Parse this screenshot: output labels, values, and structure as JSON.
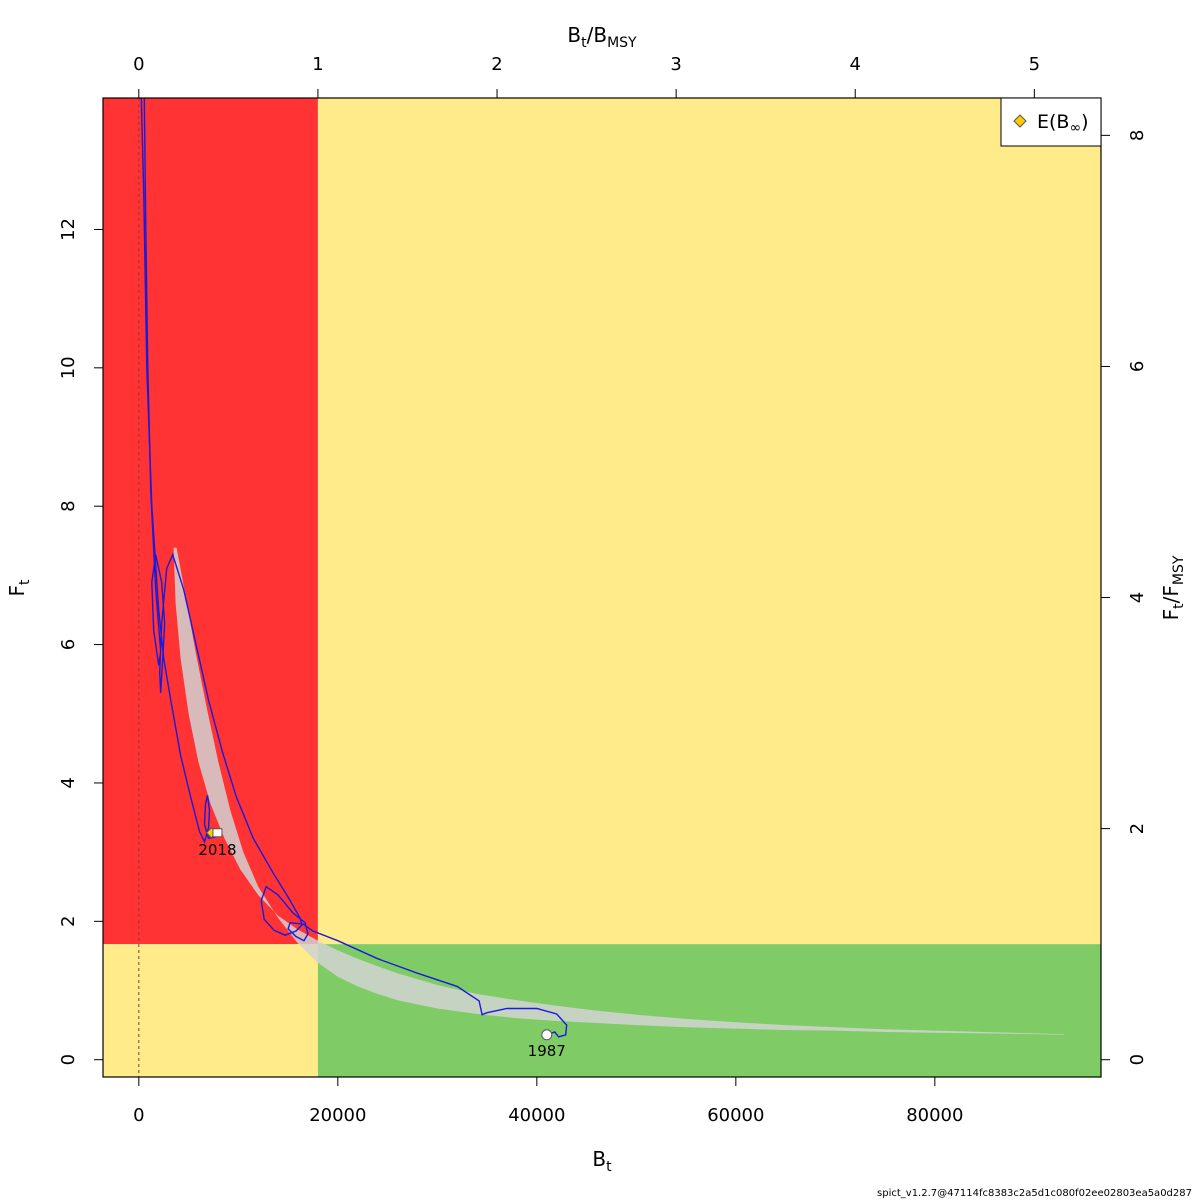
{
  "chart_data": {
    "type": "line",
    "xlabel": "B",
    "xlabel_sub": "t",
    "ylabel": "F",
    "ylabel_sub": "t",
    "top_label": "B",
    "top_label_sub1": "t",
    "top_label_sep": "/",
    "top_label_b": "B",
    "top_label_sub2": "MSY",
    "right_label": "F",
    "right_label_sub1": "t",
    "right_label_sep": "/",
    "right_label_b": "F",
    "right_label_sub2": "MSY",
    "xlim": [
      -3600,
      96700
    ],
    "ylim": [
      -0.25,
      13.9
    ],
    "x_ticks": [
      0,
      20000,
      40000,
      60000,
      80000
    ],
    "x_tick_labels": [
      "0",
      "20000",
      "40000",
      "60000",
      "80000"
    ],
    "y_ticks": [
      0,
      2,
      4,
      6,
      8,
      10,
      12
    ],
    "y_tick_labels": [
      "0",
      "2",
      "4",
      "6",
      "8",
      "10",
      "12"
    ],
    "bmsy": 18000,
    "fmsy": 1.67,
    "top_ticks": [
      0,
      1,
      2,
      3,
      4,
      5
    ],
    "top_tick_labels": [
      "0",
      "1",
      "2",
      "3",
      "4",
      "5"
    ],
    "right_ticks": [
      0,
      2,
      4,
      6,
      8
    ],
    "right_tick_labels": [
      "0",
      "2",
      "4",
      "6",
      "8"
    ],
    "zones": {
      "red": "#ff3333",
      "yellow": "#ffeb8a",
      "green": "#7fcc66"
    },
    "colors": {
      "trajectory": "#1a1ad9",
      "band": "#d2d2d2",
      "ref_line": "#8b3a3a",
      "diamond": "#ffcc00"
    },
    "band_upper": [
      [
        3500,
        7.4
      ],
      [
        3700,
        6.6
      ],
      [
        4200,
        5.8
      ],
      [
        5000,
        5.0
      ],
      [
        6000,
        4.3
      ],
      [
        7200,
        3.7
      ],
      [
        8600,
        3.2
      ],
      [
        10200,
        2.75
      ],
      [
        12000,
        2.38
      ],
      [
        14000,
        2.08
      ],
      [
        16000,
        1.88
      ],
      [
        18000,
        1.72
      ],
      [
        20000,
        1.58
      ],
      [
        22000,
        1.46
      ],
      [
        24000,
        1.35
      ],
      [
        26000,
        1.25
      ],
      [
        30000,
        1.08
      ],
      [
        34000,
        0.95
      ],
      [
        38000,
        0.86
      ],
      [
        42000,
        0.78
      ],
      [
        46000,
        0.71
      ],
      [
        50000,
        0.65
      ],
      [
        55000,
        0.59
      ],
      [
        60000,
        0.54
      ],
      [
        65000,
        0.5
      ],
      [
        70000,
        0.47
      ],
      [
        75000,
        0.44
      ],
      [
        80000,
        0.42
      ],
      [
        85000,
        0.4
      ],
      [
        90000,
        0.38
      ],
      [
        93000,
        0.37
      ]
    ],
    "band_lower": [
      [
        93000,
        0.36
      ],
      [
        90000,
        0.37
      ],
      [
        85000,
        0.38
      ],
      [
        80000,
        0.39
      ],
      [
        75000,
        0.4
      ],
      [
        70000,
        0.42
      ],
      [
        65000,
        0.43
      ],
      [
        60000,
        0.45
      ],
      [
        55000,
        0.47
      ],
      [
        50000,
        0.5
      ],
      [
        46000,
        0.53
      ],
      [
        42000,
        0.56
      ],
      [
        38000,
        0.6
      ],
      [
        34000,
        0.66
      ],
      [
        30000,
        0.74
      ],
      [
        26000,
        0.86
      ],
      [
        24000,
        0.95
      ],
      [
        22000,
        1.06
      ],
      [
        20000,
        1.2
      ],
      [
        18000,
        1.4
      ],
      [
        16000,
        1.68
      ],
      [
        14000,
        2.05
      ],
      [
        12000,
        2.5
      ],
      [
        10500,
        3.0
      ],
      [
        9200,
        3.6
      ],
      [
        8000,
        4.3
      ],
      [
        6800,
        5.1
      ],
      [
        5700,
        5.9
      ],
      [
        4700,
        6.7
      ],
      [
        3800,
        7.4
      ],
      [
        3500,
        7.4
      ]
    ],
    "trajectory": [
      [
        41000,
        0.36
      ],
      [
        41800,
        0.4
      ],
      [
        42200,
        0.33
      ],
      [
        42900,
        0.36
      ],
      [
        43000,
        0.5
      ],
      [
        42000,
        0.66
      ],
      [
        40000,
        0.74
      ],
      [
        37000,
        0.74
      ],
      [
        35000,
        0.68
      ],
      [
        34500,
        0.65
      ],
      [
        34200,
        0.85
      ],
      [
        32000,
        1.06
      ],
      [
        28000,
        1.25
      ],
      [
        24000,
        1.46
      ],
      [
        20000,
        1.72
      ],
      [
        17500,
        1.86
      ],
      [
        16500,
        1.96
      ],
      [
        15200,
        1.98
      ],
      [
        15000,
        1.89
      ],
      [
        15800,
        1.78
      ],
      [
        16600,
        1.72
      ],
      [
        17000,
        1.82
      ],
      [
        16700,
        1.98
      ],
      [
        15500,
        2.12
      ],
      [
        14000,
        2.38
      ],
      [
        12800,
        2.5
      ],
      [
        12300,
        2.3
      ],
      [
        12600,
        2.03
      ],
      [
        13600,
        1.87
      ],
      [
        14700,
        1.8
      ],
      [
        15800,
        1.86
      ],
      [
        16400,
        1.95
      ],
      [
        16200,
        2.05
      ],
      [
        15000,
        2.35
      ],
      [
        13500,
        2.7
      ],
      [
        11500,
        3.2
      ],
      [
        9800,
        3.8
      ],
      [
        8400,
        4.45
      ],
      [
        7000,
        5.2
      ],
      [
        5600,
        6.1
      ],
      [
        4500,
        6.8
      ],
      [
        3400,
        7.3
      ],
      [
        2800,
        7.1
      ],
      [
        2300,
        6.3
      ],
      [
        2100,
        5.6
      ],
      [
        2200,
        5.3
      ],
      [
        2400,
        5.8
      ],
      [
        2600,
        6.3
      ],
      [
        2300,
        6.9
      ],
      [
        1700,
        7.3
      ],
      [
        1300,
        6.9
      ],
      [
        1500,
        6.2
      ],
      [
        2000,
        5.7
      ],
      [
        2200,
        5.9
      ],
      [
        1700,
        6.8
      ],
      [
        1200,
        8.2
      ],
      [
        900,
        10.0
      ],
      [
        700,
        12.0
      ],
      [
        550,
        13.9
      ]
    ],
    "trajectory_tail": [
      [
        250,
        13.9
      ],
      [
        500,
        12.5
      ],
      [
        800,
        10.0
      ],
      [
        1300,
        8.0
      ],
      [
        2000,
        6.5
      ],
      [
        2500,
        5.8
      ],
      [
        3200,
        5.2
      ],
      [
        4200,
        4.4
      ],
      [
        5200,
        3.8
      ],
      [
        6100,
        3.3
      ],
      [
        6600,
        3.15
      ],
      [
        7000,
        3.35
      ],
      [
        7100,
        3.6
      ],
      [
        6900,
        3.82
      ],
      [
        6700,
        3.7
      ],
      [
        6600,
        3.4
      ],
      [
        7000,
        3.2
      ],
      [
        7700,
        3.22
      ],
      [
        8000,
        3.28
      ]
    ],
    "start_point": {
      "year": "1987",
      "x": 41000,
      "y": 0.36
    },
    "end_point": {
      "year": "2018",
      "x": 7900,
      "y": 3.28
    },
    "e_binf": {
      "x": 7300,
      "y": 3.28
    },
    "legend": {
      "label": "E(B",
      "label_sub": "∞",
      "label_end": ")",
      "position": "top-right"
    },
    "footer": "spict_v1.2.7@47114fc8383c2a5d1c080f02ee02803ea5a0d287"
  }
}
